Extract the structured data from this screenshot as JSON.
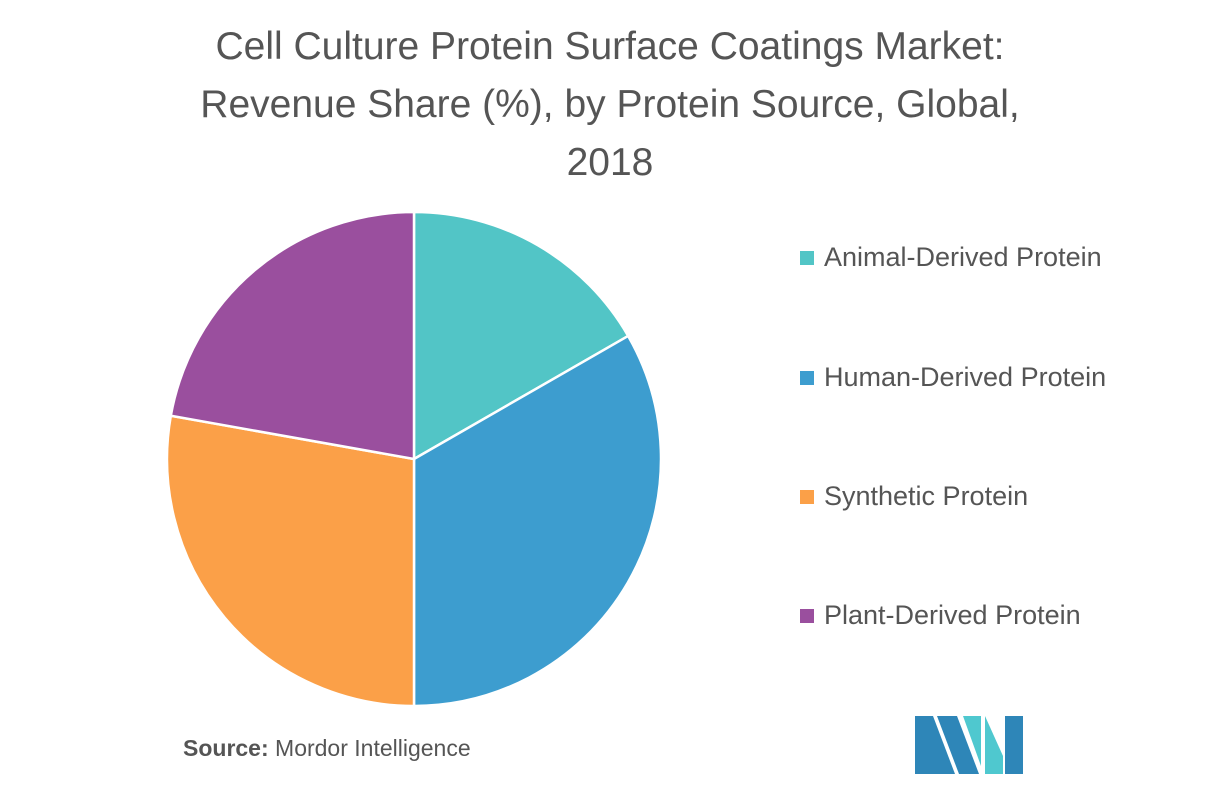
{
  "chart_data": {
    "type": "pie",
    "title": "Cell Culture Protein Surface Coatings Market: Revenue Share (%), by Protein Source, Global, 2018",
    "title_lines": [
      "Cell Culture Protein Surface Coatings Market:",
      "Revenue Share (%), by Protein Source, Global,",
      "2018"
    ],
    "categories": [
      "Animal-Derived Protein",
      "Human-Derived Protein",
      "Synthetic Protein",
      "Plant-Derived Protein"
    ],
    "values": [
      16.7,
      33.3,
      27.8,
      22.2
    ],
    "colors": [
      "#52c5c6",
      "#3d9dcf",
      "#fba048",
      "#9a4f9e"
    ],
    "legend_position": "right"
  },
  "source": {
    "label": "Source:",
    "text": "Mordor Intelligence"
  },
  "logo": {
    "colors": [
      "#2e86b8",
      "#4fc8cf"
    ]
  }
}
